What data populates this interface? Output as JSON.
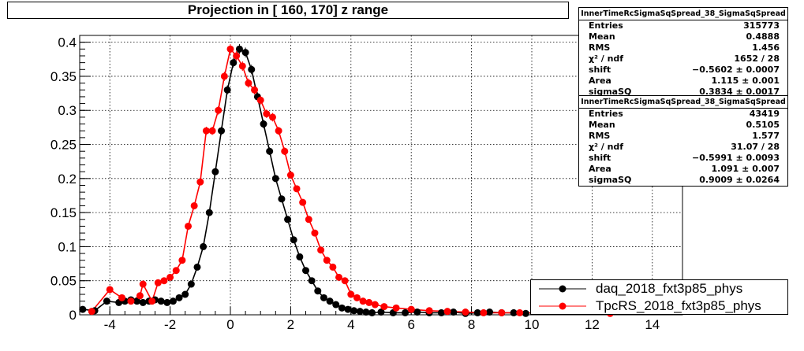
{
  "title": "Projection in [ 160, 170] z range",
  "stats": [
    {
      "name": "InnerTimeRcSigmaSqSpread_38_SigmaSqSpread",
      "rows": [
        {
          "label": "Entries",
          "value": "315773"
        },
        {
          "label": "Mean",
          "value": "0.4888"
        },
        {
          "label": "RMS",
          "value": "1.456"
        },
        {
          "label": "χ² / ndf",
          "value": "1652 / 28"
        },
        {
          "label": "shift",
          "value": "−0.5602 ± 0.0007"
        },
        {
          "label": "Area",
          "value": "1.115 ± 0.001"
        },
        {
          "label": "sigmaSQ",
          "value": "0.3834 ± 0.0017"
        }
      ]
    },
    {
      "name": "InnerTimeRcSigmaSqSpread_38_SigmaSqSpread",
      "rows": [
        {
          "label": "Entries",
          "value": "43419"
        },
        {
          "label": "Mean",
          "value": "0.5105"
        },
        {
          "label": "RMS",
          "value": "1.577"
        },
        {
          "label": "χ² / ndf",
          "value": "31.07 / 28"
        },
        {
          "label": "shift",
          "value": "−0.5991 ± 0.0093"
        },
        {
          "label": "Area",
          "value": "1.091 ± 0.007"
        },
        {
          "label": "sigmaSQ",
          "value": "0.9009 ± 0.0264"
        }
      ]
    }
  ],
  "legend": [
    {
      "label": "daq_2018_fxt3p85_phys",
      "color": "#000000"
    },
    {
      "label": "TpcRS_2018_fxt3p85_phys",
      "color": "#ff0000"
    }
  ],
  "chart_data": {
    "type": "scatter",
    "title": "Projection in [ 160, 170] z range",
    "xlim": [
      -5,
      15
    ],
    "ylim": [
      0,
      0.41
    ],
    "xticks": [
      -4,
      -2,
      0,
      2,
      4,
      6,
      8,
      10,
      12,
      14
    ],
    "yticks": [
      0,
      0.05,
      0.1,
      0.15,
      0.2,
      0.25,
      0.3,
      0.35,
      0.4
    ],
    "ytick_labels": [
      "0",
      "0.05",
      "0.1",
      "0.15",
      "0.2",
      "0.25",
      "0.3",
      "0.35",
      "0.4"
    ],
    "grid": true,
    "legend_position": "bottom-right",
    "series": [
      {
        "name": "daq_2018_fxt3p85_phys",
        "color": "#000000",
        "x": [
          -4.9,
          -4.5,
          -4.1,
          -3.7,
          -3.5,
          -3.3,
          -3.1,
          -2.9,
          -2.7,
          -2.5,
          -2.3,
          -2.1,
          -1.9,
          -1.7,
          -1.5,
          -1.3,
          -1.1,
          -0.9,
          -0.7,
          -0.5,
          -0.3,
          -0.1,
          0.1,
          0.3,
          0.5,
          0.7,
          0.9,
          1.1,
          1.3,
          1.5,
          1.7,
          1.9,
          2.1,
          2.3,
          2.5,
          2.7,
          2.9,
          3.1,
          3.3,
          3.5,
          3.7,
          3.9,
          4.1,
          4.3,
          4.5,
          4.7,
          5.0,
          5.4,
          5.8,
          6.2,
          6.6,
          7.0,
          7.4,
          7.8,
          8.2,
          8.6,
          9.0,
          9.4,
          9.8
        ],
        "y": [
          0.008,
          0.006,
          0.02,
          0.018,
          0.02,
          0.022,
          0.02,
          0.018,
          0.02,
          0.022,
          0.02,
          0.018,
          0.02,
          0.025,
          0.03,
          0.045,
          0.07,
          0.1,
          0.15,
          0.21,
          0.27,
          0.33,
          0.37,
          0.39,
          0.385,
          0.36,
          0.32,
          0.28,
          0.24,
          0.2,
          0.17,
          0.14,
          0.11,
          0.085,
          0.065,
          0.05,
          0.035,
          0.025,
          0.02,
          0.015,
          0.01,
          0.008,
          0.006,
          0.005,
          0.004,
          0.003,
          0.004,
          0.003,
          0.003,
          0.004,
          0.003,
          0.003,
          0.004,
          0.002,
          0.003,
          0.004,
          0.003,
          0.003,
          0.002
        ]
      },
      {
        "name": "TpcRS_2018_fxt3p85_phys",
        "color": "#ff0000",
        "x": [
          -4.6,
          -4.0,
          -3.6,
          -3.3,
          -3.0,
          -2.9,
          -2.6,
          -2.4,
          -2.2,
          -2.0,
          -1.8,
          -1.6,
          -1.4,
          -1.2,
          -1.0,
          -0.8,
          -0.6,
          -0.4,
          -0.2,
          0.0,
          0.2,
          0.4,
          0.6,
          0.8,
          1.0,
          1.2,
          1.4,
          1.6,
          1.8,
          2.0,
          2.2,
          2.4,
          2.6,
          2.8,
          3.0,
          3.2,
          3.4,
          3.6,
          3.8,
          4.0,
          4.2,
          4.4,
          4.6,
          4.8,
          5.1,
          5.5,
          6.0,
          6.6,
          7.2,
          7.8,
          8.4,
          9.0,
          9.6,
          12.6
        ],
        "y": [
          0.005,
          0.037,
          0.025,
          0.02,
          0.028,
          0.045,
          0.02,
          0.047,
          0.05,
          0.055,
          0.065,
          0.08,
          0.13,
          0.16,
          0.195,
          0.27,
          0.27,
          0.3,
          0.35,
          0.39,
          0.38,
          0.365,
          0.34,
          0.33,
          0.315,
          0.295,
          0.29,
          0.27,
          0.24,
          0.205,
          0.185,
          0.165,
          0.14,
          0.12,
          0.095,
          0.08,
          0.07,
          0.055,
          0.05,
          0.03,
          0.025,
          0.02,
          0.018,
          0.015,
          0.012,
          0.01,
          0.008,
          0.006,
          0.005,
          0.004,
          0.003,
          0.003,
          0.003,
          0.002
        ]
      }
    ]
  }
}
